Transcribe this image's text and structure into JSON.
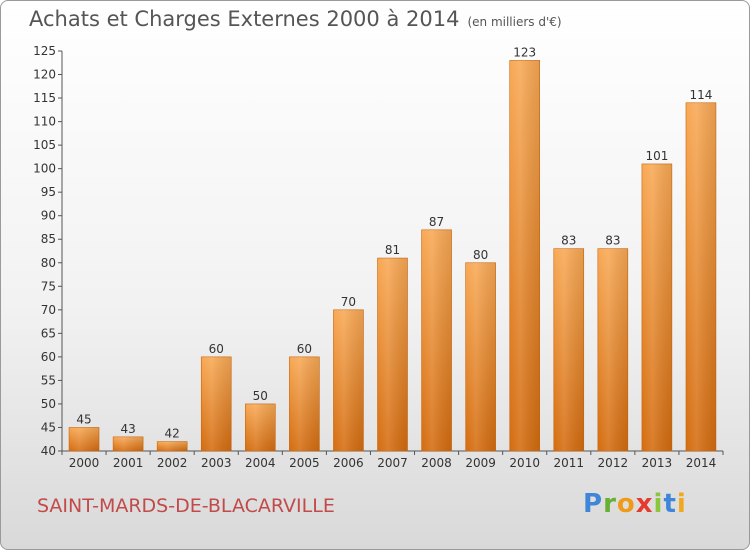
{
  "header": {
    "title": "Achats et Charges Externes 2000 à 2014",
    "unit": "(en milliers d'€)"
  },
  "footer": {
    "commune": "SAINT-MARDS-DE-BLACARVILLE",
    "logo_text": "Proxiti"
  },
  "colors": {
    "bar_light": "#f7a64e",
    "bar_dark": "#d46c0f",
    "axis": "#555555"
  },
  "chart_data": {
    "type": "bar",
    "categories": [
      "2000",
      "2001",
      "2002",
      "2003",
      "2004",
      "2005",
      "2006",
      "2007",
      "2008",
      "2009",
      "2010",
      "2011",
      "2012",
      "2013",
      "2014"
    ],
    "values": [
      45,
      43,
      42,
      60,
      50,
      60,
      70,
      81,
      87,
      80,
      123,
      83,
      83,
      101,
      114
    ],
    "ylim": [
      40,
      125
    ],
    "yticks": [
      40,
      45,
      50,
      55,
      60,
      65,
      70,
      75,
      80,
      85,
      90,
      95,
      100,
      105,
      110,
      115,
      120,
      125
    ],
    "grid": false,
    "title": "Achats et Charges Externes 2000 à 2014",
    "ylabel": "",
    "xlabel": ""
  }
}
